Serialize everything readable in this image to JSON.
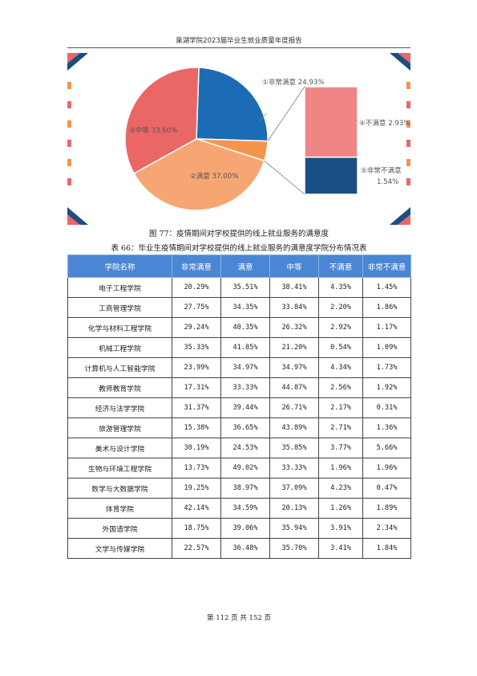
{
  "header": {
    "title": "巢湖学院2023届毕业生就业质量年度报告"
  },
  "chart_data": {
    "type": "pie",
    "slices": [
      {
        "label": "①非常满意 24.93%",
        "value": 24.93,
        "color": "#1b6bb5"
      },
      {
        "label": "②满意 37.00%",
        "value": 37.0,
        "color": "#f6a672"
      },
      {
        "label": "③中等 33.60%",
        "value": 33.6,
        "color": "#ea6766"
      },
      {
        "label": "④不满意 2.93%",
        "value": 2.93,
        "color": "#f6934c"
      },
      {
        "label": "⑤非常不满意 1.54%",
        "value": 1.54,
        "color": "#f6934c"
      }
    ],
    "breakout": [
      {
        "label": "④不满意 2.93%",
        "value": 2.93,
        "color": "#f08585"
      },
      {
        "label": "⑤非常不满意",
        "label2": "1.54%",
        "value": 1.54,
        "color": "#1a4f84"
      }
    ]
  },
  "figure_caption": "图 77：疫情期间对学校提供的线上就业服务的满意度",
  "table_caption": "表 66：毕业生疫情期间对学校提供的线上就业服务的满意度学院分布情况表",
  "table": {
    "headers": [
      "学院名称",
      "非常满意",
      "满意",
      "中等",
      "不满意",
      "非常不满意"
    ],
    "rows": [
      [
        "电子工程学院",
        "20.29%",
        "35.51%",
        "38.41%",
        "4.35%",
        "1.45%"
      ],
      [
        "工商管理学院",
        "27.75%",
        "34.35%",
        "33.84%",
        "2.20%",
        "1.86%"
      ],
      [
        "化学与材料工程学院",
        "29.24%",
        "40.35%",
        "26.32%",
        "2.92%",
        "1.17%"
      ],
      [
        "机械工程学院",
        "35.33%",
        "41.85%",
        "21.20%",
        "0.54%",
        "1.09%"
      ],
      [
        "计算机与人工智能学院",
        "23.99%",
        "34.97%",
        "34.97%",
        "4.34%",
        "1.73%"
      ],
      [
        "教师教育学院",
        "17.31%",
        "33.33%",
        "44.87%",
        "2.56%",
        "1.92%"
      ],
      [
        "经济与法学学院",
        "31.37%",
        "39.44%",
        "26.71%",
        "2.17%",
        "0.31%"
      ],
      [
        "旅游管理学院",
        "15.38%",
        "36.65%",
        "43.89%",
        "2.71%",
        "1.36%"
      ],
      [
        "美术与设计学院",
        "30.19%",
        "24.53%",
        "35.85%",
        "3.77%",
        "5.66%"
      ],
      [
        "生物与环境工程学院",
        "13.73%",
        "49.02%",
        "33.33%",
        "1.96%",
        "1.96%"
      ],
      [
        "数学与大数据学院",
        "19.25%",
        "38.97%",
        "37.09%",
        "4.23%",
        "0.47%"
      ],
      [
        "体育学院",
        "42.14%",
        "34.59%",
        "20.13%",
        "1.26%",
        "1.89%"
      ],
      [
        "外国语学院",
        "18.75%",
        "39.06%",
        "35.94%",
        "3.91%",
        "2.34%"
      ],
      [
        "文学与传媒学院",
        "22.57%",
        "36.48%",
        "35.70%",
        "3.41%",
        "1.84%"
      ]
    ]
  },
  "footer": {
    "page_text": "第 112 页 共 152 页"
  }
}
